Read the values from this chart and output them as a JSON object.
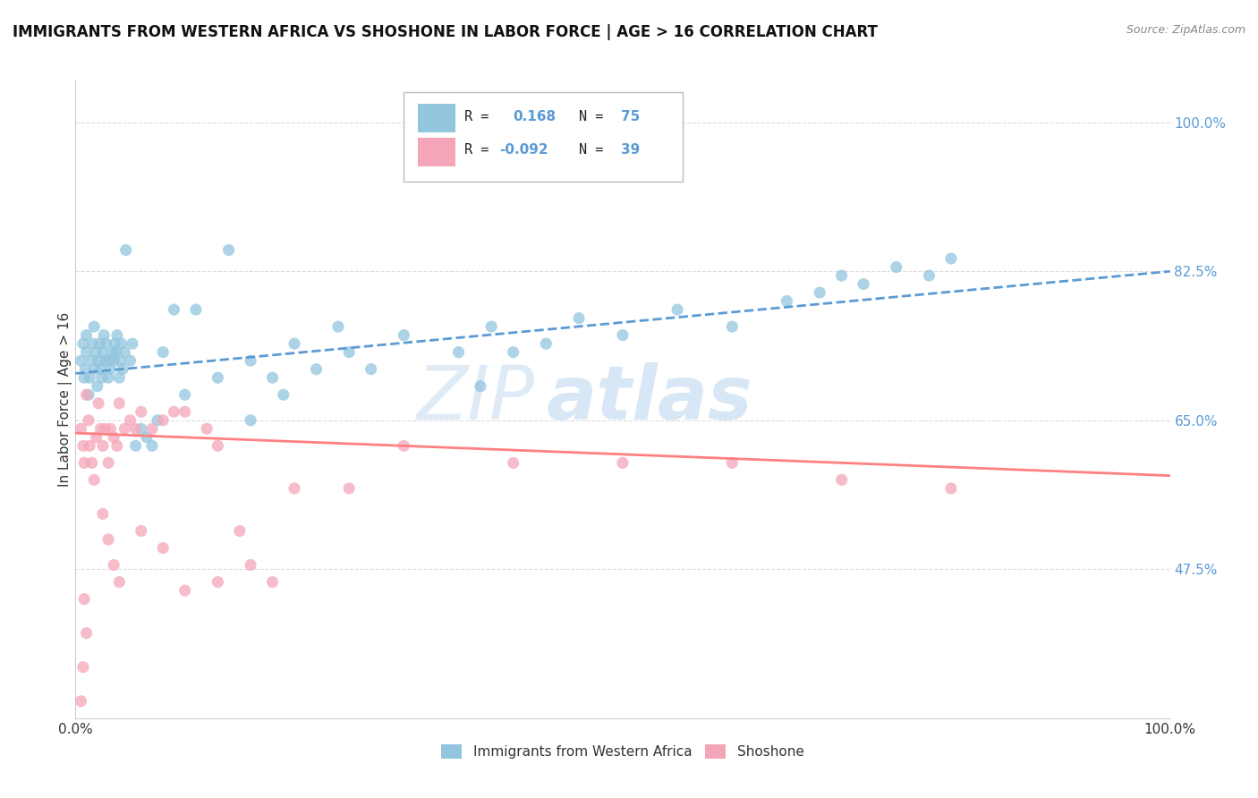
{
  "title": "IMMIGRANTS FROM WESTERN AFRICA VS SHOSHONE IN LABOR FORCE | AGE > 16 CORRELATION CHART",
  "source": "Source: ZipAtlas.com",
  "ylabel": "In Labor Force | Age > 16",
  "xlim": [
    0.0,
    1.0
  ],
  "ylim": [
    0.3,
    1.05
  ],
  "x_tick_labels": [
    "0.0%",
    "100.0%"
  ],
  "x_tick_positions": [
    0.0,
    1.0
  ],
  "y_tick_labels": [
    "47.5%",
    "65.0%",
    "82.5%",
    "100.0%"
  ],
  "y_tick_positions": [
    0.475,
    0.65,
    0.825,
    1.0
  ],
  "watermark_zip": "ZIP",
  "watermark_atlas": "atlas",
  "legend_r1_prefix": "R =  ",
  "legend_r1_val": "0.168",
  "legend_n1_label": "N = ",
  "legend_n1_val": "75",
  "legend_r2_prefix": "R = ",
  "legend_r2_val": "-0.092",
  "legend_n2_label": "N = ",
  "legend_n2_val": "39",
  "color_blue": "#92C5DE",
  "color_pink": "#F4A6B8",
  "trendline_blue": "#5B9BD5",
  "trendline_pink": "#FF8080",
  "blue_scatter_x": [
    0.005,
    0.007,
    0.008,
    0.009,
    0.01,
    0.01,
    0.012,
    0.013,
    0.015,
    0.016,
    0.017,
    0.018,
    0.019,
    0.02,
    0.021,
    0.022,
    0.023,
    0.024,
    0.025,
    0.026,
    0.027,
    0.028,
    0.03,
    0.031,
    0.032,
    0.034,
    0.035,
    0.036,
    0.037,
    0.038,
    0.04,
    0.041,
    0.042,
    0.043,
    0.045,
    0.046,
    0.05,
    0.052,
    0.055,
    0.06,
    0.065,
    0.07,
    0.075,
    0.08,
    0.09,
    0.1,
    0.11,
    0.13,
    0.14,
    0.16,
    0.16,
    0.18,
    0.19,
    0.2,
    0.22,
    0.24,
    0.25,
    0.27,
    0.3,
    0.35,
    0.37,
    0.38,
    0.4,
    0.43,
    0.46,
    0.5,
    0.55,
    0.6,
    0.65,
    0.68,
    0.7,
    0.72,
    0.75,
    0.78,
    0.8
  ],
  "blue_scatter_y": [
    0.72,
    0.74,
    0.7,
    0.71,
    0.73,
    0.75,
    0.68,
    0.7,
    0.72,
    0.74,
    0.76,
    0.71,
    0.73,
    0.69,
    0.72,
    0.74,
    0.71,
    0.7,
    0.73,
    0.75,
    0.72,
    0.74,
    0.7,
    0.72,
    0.71,
    0.73,
    0.72,
    0.74,
    0.73,
    0.75,
    0.7,
    0.72,
    0.74,
    0.71,
    0.73,
    0.85,
    0.72,
    0.74,
    0.62,
    0.64,
    0.63,
    0.62,
    0.65,
    0.73,
    0.78,
    0.68,
    0.78,
    0.7,
    0.85,
    0.72,
    0.65,
    0.7,
    0.68,
    0.74,
    0.71,
    0.76,
    0.73,
    0.71,
    0.75,
    0.73,
    0.69,
    0.76,
    0.73,
    0.74,
    0.77,
    0.75,
    0.78,
    0.76,
    0.79,
    0.8,
    0.82,
    0.81,
    0.83,
    0.82,
    0.84
  ],
  "pink_scatter_x": [
    0.005,
    0.007,
    0.008,
    0.01,
    0.012,
    0.013,
    0.015,
    0.017,
    0.019,
    0.021,
    0.023,
    0.025,
    0.027,
    0.03,
    0.032,
    0.035,
    0.038,
    0.04,
    0.045,
    0.05,
    0.055,
    0.06,
    0.07,
    0.08,
    0.09,
    0.1,
    0.12,
    0.13,
    0.15,
    0.16,
    0.18,
    0.2,
    0.25,
    0.3,
    0.4,
    0.5,
    0.6,
    0.7,
    0.8
  ],
  "pink_scatter_y": [
    0.64,
    0.62,
    0.6,
    0.68,
    0.65,
    0.62,
    0.6,
    0.58,
    0.63,
    0.67,
    0.64,
    0.62,
    0.64,
    0.6,
    0.64,
    0.63,
    0.62,
    0.67,
    0.64,
    0.65,
    0.64,
    0.66,
    0.64,
    0.65,
    0.66,
    0.66,
    0.64,
    0.62,
    0.52,
    0.48,
    0.46,
    0.57,
    0.57,
    0.62,
    0.6,
    0.6,
    0.6,
    0.58,
    0.57
  ],
  "pink_low_x": [
    0.005,
    0.007,
    0.008,
    0.01,
    0.025,
    0.03,
    0.035,
    0.04,
    0.06,
    0.08,
    0.1,
    0.13
  ],
  "pink_low_y": [
    0.32,
    0.36,
    0.44,
    0.4,
    0.54,
    0.51,
    0.48,
    0.46,
    0.52,
    0.5,
    0.45,
    0.46
  ],
  "blue_trend_y_start": 0.705,
  "blue_trend_y_end": 0.825,
  "pink_trend_y_start": 0.635,
  "pink_trend_y_end": 0.585,
  "grid_color": "#DDDDDD",
  "axis_color": "#CCCCCC",
  "tick_color_blue": "#5B9BD5",
  "tick_color_dark": "#333333",
  "bg_color": "#FFFFFF"
}
